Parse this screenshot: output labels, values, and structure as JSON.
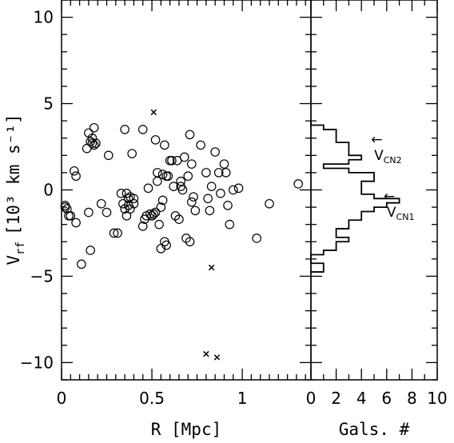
{
  "chart_data": [
    {
      "type": "scatter",
      "panel": "left",
      "xlabel": "R [Mpc]",
      "ylabel_main": "V",
      "ylabel_sub": "rf",
      "ylabel_unit": "[10³ km s⁻¹]",
      "xlim": [
        0,
        1.38
      ],
      "ylim": [
        -11,
        11
      ],
      "xticks": [
        "0",
        "0.5",
        "1"
      ],
      "xtick_values": [
        0,
        0.5,
        1
      ],
      "yticks": [
        "10",
        "5",
        "0",
        "−5",
        "−10"
      ],
      "ytick_values": [
        10,
        5,
        0,
        -5,
        -10
      ],
      "series": [
        {
          "marker": "circle",
          "points": [
            [
              0.02,
              -0.9
            ],
            [
              0.02,
              -1.0
            ],
            [
              0.03,
              -1.1
            ],
            [
              0.04,
              -1.5
            ],
            [
              0.05,
              -1.5
            ],
            [
              0.07,
              1.1
            ],
            [
              0.08,
              0.8
            ],
            [
              0.08,
              -1.9
            ],
            [
              0.11,
              -4.3
            ],
            [
              0.14,
              2.4
            ],
            [
              0.15,
              3.3
            ],
            [
              0.15,
              -1.3
            ],
            [
              0.16,
              2.8
            ],
            [
              0.16,
              -3.5
            ],
            [
              0.17,
              3.0
            ],
            [
              0.17,
              2.7
            ],
            [
              0.18,
              3.6
            ],
            [
              0.18,
              2.6
            ],
            [
              0.19,
              2.7
            ],
            [
              0.22,
              -0.8
            ],
            [
              0.25,
              -1.3
            ],
            [
              0.26,
              2.0
            ],
            [
              0.29,
              -2.5
            ],
            [
              0.31,
              -2.5
            ],
            [
              0.33,
              -0.2
            ],
            [
              0.34,
              -0.8
            ],
            [
              0.35,
              3.5
            ],
            [
              0.35,
              -1.1
            ],
            [
              0.36,
              -0.2
            ],
            [
              0.36,
              -1.5
            ],
            [
              0.37,
              -0.5
            ],
            [
              0.37,
              -0.9
            ],
            [
              0.38,
              -0.4
            ],
            [
              0.38,
              -1.1
            ],
            [
              0.39,
              2.1
            ],
            [
              0.4,
              -0.5
            ],
            [
              0.4,
              -0.8
            ],
            [
              0.45,
              -2.1
            ],
            [
              0.45,
              3.5
            ],
            [
              0.46,
              -1.7
            ],
            [
              0.47,
              -1.5
            ],
            [
              0.48,
              0.1
            ],
            [
              0.49,
              -1.4
            ],
            [
              0.5,
              -1.5
            ],
            [
              0.5,
              -1.5
            ],
            [
              0.51,
              -1.4
            ],
            [
              0.52,
              2.9
            ],
            [
              0.52,
              -1.3
            ],
            [
              0.53,
              1.0
            ],
            [
              0.53,
              0.5
            ],
            [
              0.54,
              -2.0
            ],
            [
              0.55,
              -1.0
            ],
            [
              0.55,
              -3.4
            ],
            [
              0.56,
              0.9
            ],
            [
              0.56,
              -0.6
            ],
            [
              0.57,
              2.6
            ],
            [
              0.57,
              -3.0
            ],
            [
              0.58,
              -3.2
            ],
            [
              0.58,
              0.8
            ],
            [
              0.59,
              0.8
            ],
            [
              0.6,
              1.7
            ],
            [
              0.61,
              1.7
            ],
            [
              0.62,
              0.2
            ],
            [
              0.63,
              -1.5
            ],
            [
              0.64,
              1.7
            ],
            [
              0.65,
              -1.7
            ],
            [
              0.66,
              0.5
            ],
            [
              0.66,
              0.2
            ],
            [
              0.67,
              0.0
            ],
            [
              0.68,
              1.9
            ],
            [
              0.69,
              -2.8
            ],
            [
              0.7,
              0.8
            ],
            [
              0.71,
              3.2
            ],
            [
              0.71,
              -3.0
            ],
            [
              0.72,
              1.5
            ],
            [
              0.72,
              -0.7
            ],
            [
              0.73,
              -0.4
            ],
            [
              0.74,
              -1.2
            ],
            [
              0.77,
              2.6
            ],
            [
              0.8,
              1.0
            ],
            [
              0.81,
              -0.5
            ],
            [
              0.82,
              -1.2
            ],
            [
              0.83,
              0.2
            ],
            [
              0.85,
              2.2
            ],
            [
              0.87,
              1.0
            ],
            [
              0.88,
              -0.2
            ],
            [
              0.9,
              1.5
            ],
            [
              0.91,
              1.0
            ],
            [
              0.92,
              -0.9
            ],
            [
              0.93,
              -2.0
            ],
            [
              0.95,
              0.0
            ],
            [
              0.98,
              0.1
            ],
            [
              1.08,
              -2.8
            ],
            [
              1.15,
              -0.8
            ],
            [
              1.31,
              0.35
            ]
          ]
        },
        {
          "marker": "cross",
          "points": [
            [
              0.51,
              4.5
            ],
            [
              0.83,
              -4.5
            ],
            [
              0.8,
              -9.5
            ],
            [
              0.86,
              -9.7
            ]
          ]
        }
      ]
    },
    {
      "type": "histogram",
      "panel": "right",
      "orientation": "horizontal",
      "xlabel": "Gals. #",
      "xlim": [
        0,
        10
      ],
      "ylim": [
        -11,
        11
      ],
      "xticks": [
        "0",
        "2",
        "4",
        "6",
        "8",
        "10"
      ],
      "xtick_values": [
        0,
        2,
        4,
        6,
        8,
        10
      ],
      "bin_width": 0.25,
      "bins": [
        {
          "y0": -4.75,
          "count": 1
        },
        {
          "y0": -4.5,
          "count": 1
        },
        {
          "y0": -4.25,
          "count": 0
        },
        {
          "y0": -4.0,
          "count": 0
        },
        {
          "y0": -3.75,
          "count": 1
        },
        {
          "y0": -3.5,
          "count": 2
        },
        {
          "y0": -3.25,
          "count": 2
        },
        {
          "y0": -3.0,
          "count": 3
        },
        {
          "y0": -2.75,
          "count": 2
        },
        {
          "y0": -2.5,
          "count": 2
        },
        {
          "y0": -2.25,
          "count": 3
        },
        {
          "y0": -2.0,
          "count": 3
        },
        {
          "y0": -1.75,
          "count": 4
        },
        {
          "y0": -1.5,
          "count": 4
        },
        {
          "y0": -1.25,
          "count": 5
        },
        {
          "y0": -1.0,
          "count": 6
        },
        {
          "y0": -0.75,
          "count": 7
        },
        {
          "y0": -0.5,
          "count": 5
        },
        {
          "y0": -0.25,
          "count": 4
        },
        {
          "y0": 0.0,
          "count": 4
        },
        {
          "y0": 0.25,
          "count": 4
        },
        {
          "y0": 0.5,
          "count": 5
        },
        {
          "y0": 0.75,
          "count": 5
        },
        {
          "y0": 1.0,
          "count": 3
        },
        {
          "y0": 1.25,
          "count": 1
        },
        {
          "y0": 1.5,
          "count": 3
        },
        {
          "y0": 1.75,
          "count": 4
        },
        {
          "y0": 2.0,
          "count": 3
        },
        {
          "y0": 2.25,
          "count": 3
        },
        {
          "y0": 2.5,
          "count": 3
        },
        {
          "y0": 2.75,
          "count": 2
        },
        {
          "y0": 3.0,
          "count": 2
        },
        {
          "y0": 3.25,
          "count": 2
        },
        {
          "y0": 3.5,
          "count": 1
        },
        {
          "y0": 3.75,
          "count": 0
        }
      ],
      "annotations": [
        {
          "main": "V",
          "sub": "CN2",
          "arrow": "←",
          "y": 2.3,
          "x": 4.5
        },
        {
          "main": "V",
          "sub": "CN1",
          "arrow": "←",
          "y": -1.0,
          "x": 5.5
        }
      ]
    }
  ]
}
